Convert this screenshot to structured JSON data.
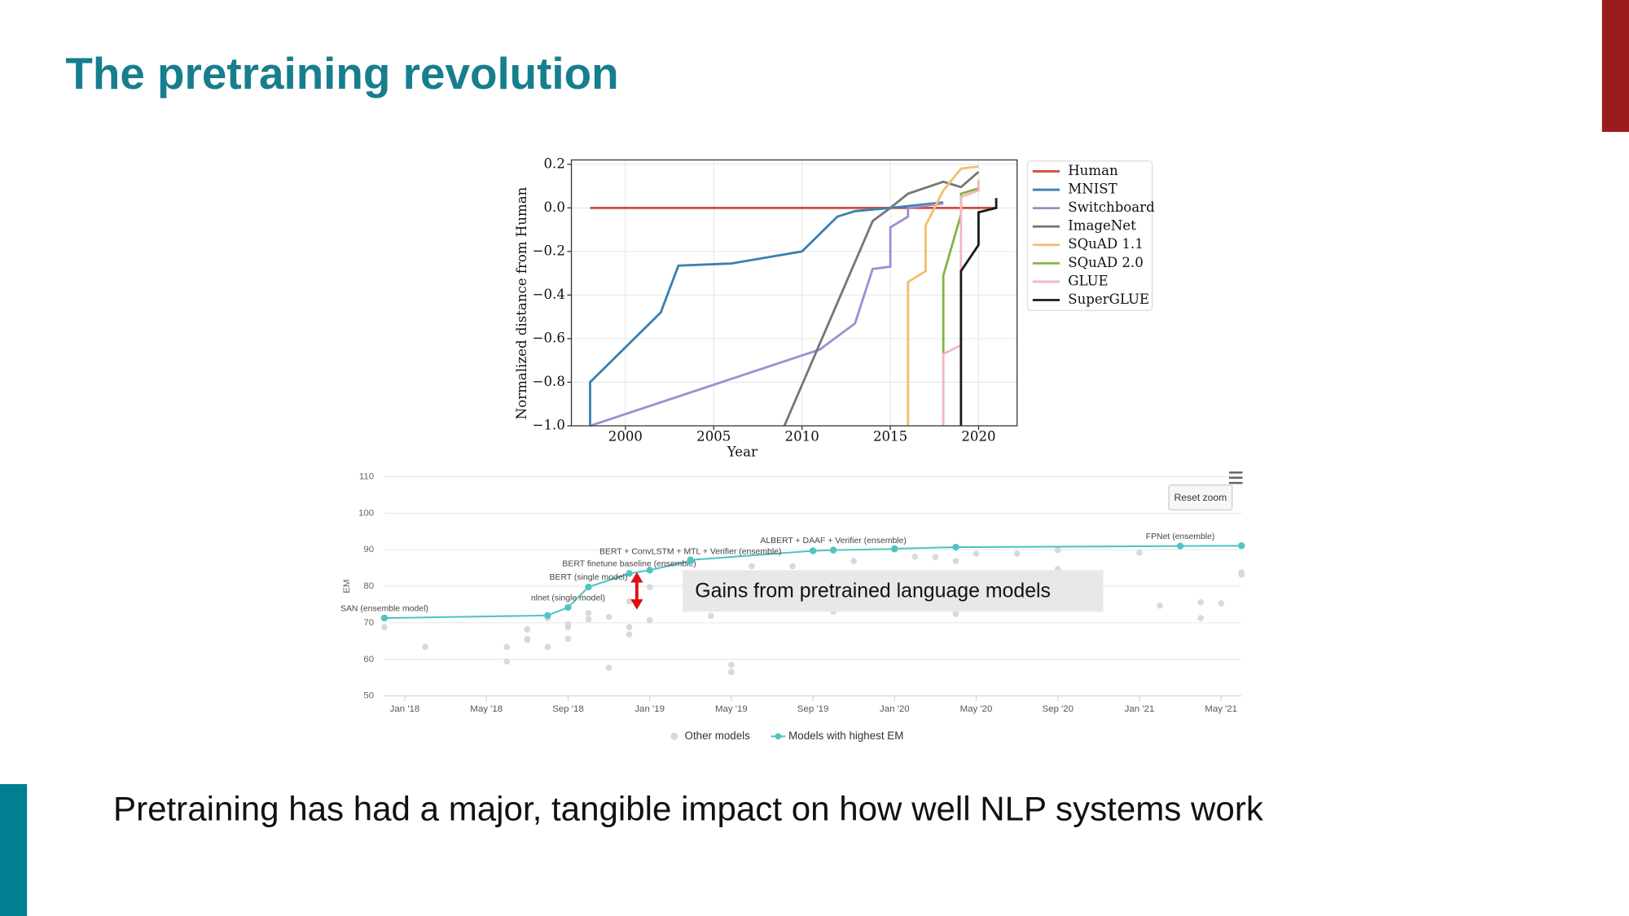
{
  "title": "The pretraining revolution",
  "caption": "Pretraining has had a major, tangible impact on how well NLP systems work",
  "callout": "Gains from pretrained language models",
  "chart_data": [
    {
      "type": "line",
      "x_label": "Year",
      "y_label": "Normalized distance from Human",
      "xlim": [
        1996.94,
        2022.18
      ],
      "ylim": [
        -1.0,
        0.22
      ],
      "xticks": [
        2000,
        2005,
        2010,
        2015,
        2020
      ],
      "yticks": [
        {
          "value": 0.2,
          "label": "0.2"
        },
        {
          "value": 0,
          "label": "0.0"
        },
        {
          "value": -0.2,
          "label": "−0.2"
        },
        {
          "value": -0.4,
          "label": "−0.4"
        },
        {
          "value": -0.6,
          "label": "−0.6"
        },
        {
          "value": -0.8,
          "label": "−0.8"
        },
        {
          "value": -1.0,
          "label": "−1.0"
        }
      ],
      "grid": true,
      "legend": "outside-right",
      "series": [
        {
          "name": "Human",
          "color": "#cd4f3c",
          "x": [
            1998,
            2021
          ],
          "values": [
            0,
            0
          ]
        },
        {
          "name": "MNIST",
          "color": "#3a80b0",
          "x": [
            1998,
            1998,
            2002,
            2003,
            2006,
            2010,
            2012,
            2013,
            2015,
            2018
          ],
          "values": [
            -1.0,
            -0.8,
            -0.48,
            -0.265,
            -0.255,
            -0.2,
            -0.04,
            -0.015,
            0.0,
            0.025
          ]
        },
        {
          "name": "Switchboard",
          "color": "#9b8ed1",
          "x": [
            1998,
            2011,
            2013,
            2014,
            2015,
            2015,
            2016,
            2016,
            2018
          ],
          "values": [
            -1.0,
            -0.65,
            -0.53,
            -0.28,
            -0.27,
            -0.09,
            -0.04,
            0.0,
            0.02
          ]
        },
        {
          "name": "ImageNet",
          "color": "#767676",
          "x": [
            2009,
            2014,
            2015,
            2016,
            2018,
            2019,
            2020
          ],
          "values": [
            -1.0,
            -0.06,
            0.0,
            0.065,
            0.12,
            0.095,
            0.165
          ]
        },
        {
          "name": "SQuAD 1.1",
          "color": "#f3bd6b",
          "x": [
            2016,
            2016,
            2017,
            2017,
            2018,
            2019,
            2020
          ],
          "values": [
            -1.0,
            -0.34,
            -0.29,
            -0.08,
            0.08,
            0.18,
            0.19
          ]
        },
        {
          "name": "SQuAD 2.0",
          "color": "#84b446",
          "x": [
            2018,
            2018,
            2019,
            2019,
            2020
          ],
          "values": [
            -0.67,
            -0.31,
            -0.03,
            0.065,
            0.09
          ]
        },
        {
          "name": "GLUE",
          "color": "#f5b5bf",
          "x": [
            2018,
            2018,
            2019,
            2019,
            2020,
            2020
          ],
          "values": [
            -1.0,
            -0.67,
            -0.63,
            0.05,
            0.08,
            0.13
          ]
        },
        {
          "name": "SuperGLUE",
          "color": "#1a1a1a",
          "x": [
            2019,
            2019,
            2020,
            2020,
            2021,
            2021
          ],
          "values": [
            -1.0,
            -0.29,
            -0.17,
            -0.02,
            0.0,
            0.045
          ]
        }
      ]
    },
    {
      "type": "scatter",
      "y_label": "EM",
      "button": "Reset zoom",
      "xlim": [
        "2017-12",
        "2021-06"
      ],
      "ylim": [
        50,
        110
      ],
      "xticks": [
        {
          "value": "2018-01",
          "label": "Jan '18"
        },
        {
          "value": "2018-05",
          "label": "May '18"
        },
        {
          "value": "2018-09",
          "label": "Sep '18"
        },
        {
          "value": "2019-01",
          "label": "Jan '19"
        },
        {
          "value": "2019-05",
          "label": "May '19"
        },
        {
          "value": "2019-09",
          "label": "Sep '19"
        },
        {
          "value": "2020-01",
          "label": "Jan '20"
        },
        {
          "value": "2020-05",
          "label": "May '20"
        },
        {
          "value": "2020-09",
          "label": "Sep '20"
        },
        {
          "value": "2021-01",
          "label": "Jan '21"
        },
        {
          "value": "2021-05",
          "label": "May '21"
        }
      ],
      "yticks": [
        50,
        60,
        70,
        80,
        90,
        100,
        110
      ],
      "grid": true,
      "legend": "bottom",
      "series": [
        {
          "name": "Other models",
          "type": "scatter",
          "color": "#d9d9d9",
          "x": [
            "2017-12",
            "2018-02",
            "2018-06",
            "2018-06",
            "2018-07",
            "2018-07",
            "2018-07",
            "2018-07",
            "2018-08",
            "2018-08",
            "2018-09",
            "2018-09",
            "2018-09",
            "2018-10",
            "2018-10",
            "2018-11",
            "2018-11",
            "2018-12",
            "2018-12",
            "2018-12",
            "2019-01",
            "2019-01",
            "2019-04",
            "2019-05",
            "2019-05",
            "2019-06",
            "2019-08",
            "2019-10",
            "2019-11",
            "2020-02",
            "2020-03",
            "2020-04",
            "2020-04",
            "2020-05",
            "2020-07",
            "2020-09",
            "2020-09",
            "2020-11",
            "2021-01",
            "2021-02",
            "2021-04",
            "2021-04",
            "2021-05",
            "2021-06",
            "2021-06"
          ],
          "values": [
            68.8,
            63.4,
            63.4,
            59.4,
            68.2,
            65.6,
            68.2,
            65.3,
            63.4,
            71.3,
            68.8,
            65.6,
            69.6,
            72.7,
            71.0,
            71.6,
            57.7,
            68.8,
            66.8,
            75.9,
            70.7,
            79.8,
            71.9,
            58.5,
            56.5,
            85.5,
            85.5,
            73.0,
            86.9,
            88.1,
            88.0,
            72.4,
            86.9,
            88.9,
            88.9,
            84.7,
            89.9,
            74.7,
            89.2,
            74.7,
            75.6,
            71.3,
            75.3,
            83.2,
            83.8
          ]
        },
        {
          "name": "Models with highest EM",
          "type": "line",
          "color": "#50c4c0",
          "x": [
            "2017-12",
            "2018-08",
            "2018-09",
            "2018-10",
            "2018-12",
            "2019-01",
            "2019-03",
            "2019-03",
            "2019-09",
            "2019-10",
            "2020-01",
            "2020-01",
            "2020-04",
            "2021-03",
            "2021-06"
          ],
          "values": [
            71.3,
            72.0,
            74.2,
            79.8,
            83.5,
            84.4,
            86.9,
            87.2,
            89.7,
            89.9,
            90.2,
            90.3,
            90.7,
            91.0,
            91.1
          ],
          "labels": [
            "SAN (ensemble model)",
            null,
            "nlnet (single model)",
            "BERT (single model)",
            "BERT finetune baseline (ensemble)",
            null,
            "BERT + ConvLSTM + MTL + Verifier (ensemble)",
            null,
            null,
            "ALBERT + DAAF + Verifier (ensemble)",
            null,
            null,
            null,
            "FPNet (ensemble)",
            null
          ]
        }
      ]
    }
  ]
}
